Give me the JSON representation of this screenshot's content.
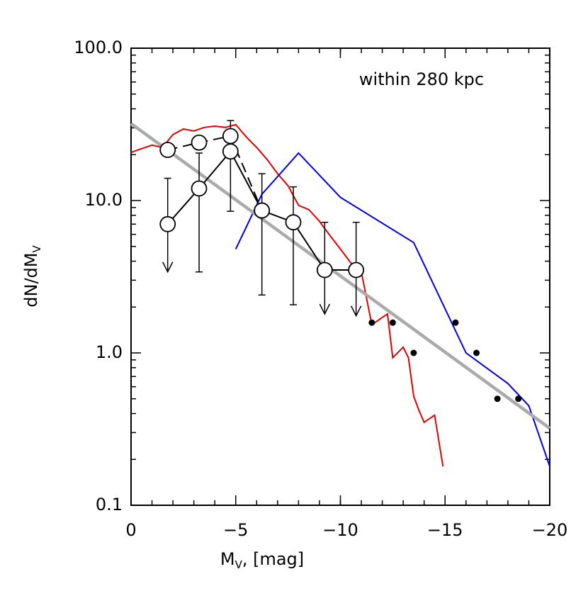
{
  "chart_data": {
    "type": "line",
    "annotation": "within 280 kpc",
    "xlabel": {
      "text": "M",
      "sub": "V",
      "rest": ", [mag]"
    },
    "ylabel": {
      "text": "dN/dM",
      "sub": "V"
    },
    "xlim": [
      0,
      -20
    ],
    "ylim": [
      0.1,
      100
    ],
    "ylog": true,
    "minor_ticks": true,
    "xticks": [
      0,
      {
        "value": -5,
        "label": "−5"
      },
      {
        "value": -10,
        "label": "−10"
      },
      {
        "value": -15,
        "label": "−15"
      },
      {
        "value": -20,
        "label": "−20"
      }
    ],
    "yticks": [
      0.1,
      {
        "value": 1,
        "label": "1.0"
      },
      {
        "value": 10,
        "label": "10.0"
      },
      {
        "value": 100,
        "label": "100.0"
      }
    ],
    "series": [
      {
        "style": "line",
        "color": "#e00000",
        "x": [
          0,
          -0.5,
          -1,
          -1.5,
          -2,
          -2.5,
          -3,
          -3.5,
          -4,
          -4.5,
          -5,
          -5.5,
          -6,
          -6.5,
          -7,
          -7.5,
          -8,
          -8.5,
          -9,
          -9.5,
          -10,
          -10.5,
          -11,
          -11.5,
          -12,
          -12.25,
          -12.5,
          -13,
          -13.25,
          -13.5,
          -13.75,
          -14,
          -14.25,
          -14.5,
          -14.9
        ],
        "values": [
          20.7,
          21.9,
          23.1,
          22.3,
          27.1,
          29.5,
          28.6,
          30.2,
          30.8,
          30.2,
          31.5,
          26.2,
          22.3,
          18.6,
          15,
          12.5,
          9.3,
          8.7,
          7.3,
          5.9,
          4.8,
          3.9,
          3.4,
          1.53,
          1.71,
          1.8,
          0.93,
          1.09,
          0.93,
          0.52,
          0.42,
          0.35,
          0.37,
          0.39,
          0.18
        ]
      },
      {
        "style": "line",
        "color": "#0000dd",
        "x": [
          -5,
          -6.25,
          -8,
          -10,
          -13.5,
          -16,
          -18,
          -19,
          -20
        ],
        "values": [
          4.8,
          11,
          20.5,
          10.5,
          5.3,
          1.0,
          0.63,
          0.45,
          0.18
        ]
      },
      {
        "style": "thick",
        "color": "#aaaaaa",
        "x": [
          0,
          -20
        ],
        "values": [
          32,
          0.32
        ]
      },
      {
        "style": "dashed",
        "color": "#000000",
        "markers": true,
        "x": [
          -1.75,
          -3.25,
          -4.75,
          -6.25
        ],
        "values": [
          21.5,
          24,
          26.5,
          8.6
        ]
      },
      {
        "style": "line",
        "color": "#000000",
        "markers": true,
        "x": [
          -1.75,
          -3.25,
          -4.75,
          -6.25,
          -7.75,
          -9.25,
          -10.75
        ],
        "values": [
          7,
          12,
          21,
          8.6,
          7.2,
          3.5,
          3.5
        ],
        "upper": [
          14,
          20.5,
          33.5,
          15,
          12.3,
          7.2,
          7.2
        ],
        "lower": [
          3.4,
          3.4,
          8.5,
          2.4,
          2.07,
          1.8,
          1.75
        ],
        "lower_arrow": [
          true,
          false,
          false,
          false,
          false,
          true,
          true
        ]
      },
      {
        "style": "points",
        "color": "#000000",
        "x": [
          -11.5,
          -12.5,
          -13.5,
          -15.5,
          -16.5,
          -17.5,
          -18.5
        ],
        "values": [
          1.58,
          1.58,
          1.0,
          1.58,
          1.0,
          0.5,
          0.5
        ]
      }
    ]
  }
}
